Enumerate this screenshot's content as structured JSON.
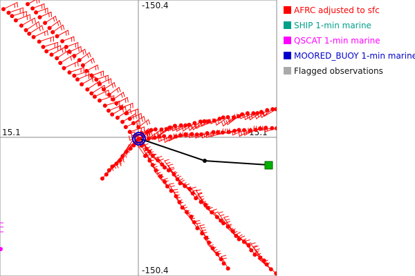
{
  "chart_data": {
    "type": "scatter",
    "center": {
      "lat": 15.1,
      "lon": -150.4
    },
    "tick_labels": {
      "top": "-150.4",
      "bottom": "-150.4",
      "left": "15.1",
      "right": "15.1"
    },
    "legend": [
      {
        "label": "AFRC adjusted to sfc",
        "color": "#ff0000"
      },
      {
        "label": "SHIP 1-min marine",
        "color": "#00a08a"
      },
      {
        "label": "QSCAT 1-min marine",
        "color": "#ff00ff"
      },
      {
        "label": "MOORED_BUOY 1-min marine",
        "color": "#0000cc"
      },
      {
        "label": "Flagged observations",
        "color": "#aaaaaa"
      }
    ],
    "series": [
      {
        "name": "AFRC adjusted to sfc",
        "values": []
      }
    ]
  }
}
